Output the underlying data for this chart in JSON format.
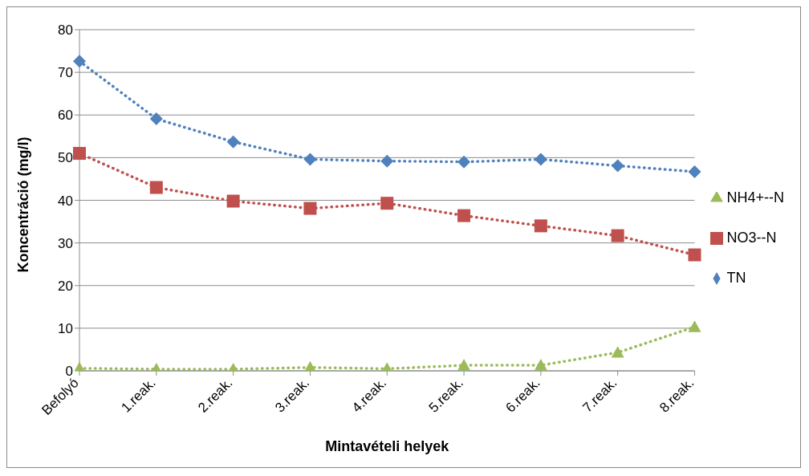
{
  "chart_data": {
    "type": "line",
    "xlabel": "Mintavételi helyek",
    "ylabel": "Koncentráció (mg/l)",
    "categories": [
      "Befolyó",
      "1.reak.",
      "2.reak.",
      "3.reak.",
      "4.reak.",
      "5.reak.",
      "6.reak.",
      "7.reak.",
      "8.reak."
    ],
    "series": [
      {
        "name": "TN",
        "color": "#4f81bd",
        "marker": "diamond",
        "values": [
          72.6,
          59.1,
          53.7,
          49.6,
          49.2,
          49.0,
          49.6,
          48.1,
          46.7
        ]
      },
      {
        "name": "NO3--N",
        "color": "#c0504d",
        "marker": "square",
        "values": [
          51.0,
          43.0,
          39.8,
          38.1,
          39.3,
          36.4,
          34.0,
          31.7,
          27.2
        ]
      },
      {
        "name": "NH4+--N",
        "color": "#9bbb59",
        "marker": "triangle",
        "values": [
          0.6,
          0.4,
          0.4,
          0.8,
          0.5,
          1.3,
          1.3,
          4.3,
          10.3
        ]
      }
    ],
    "ylim": [
      0,
      80
    ],
    "yticks": [
      0,
      10,
      20,
      30,
      40,
      50,
      60,
      70,
      80
    ],
    "grid": "y",
    "legend": "right",
    "line_style": "dotted"
  }
}
